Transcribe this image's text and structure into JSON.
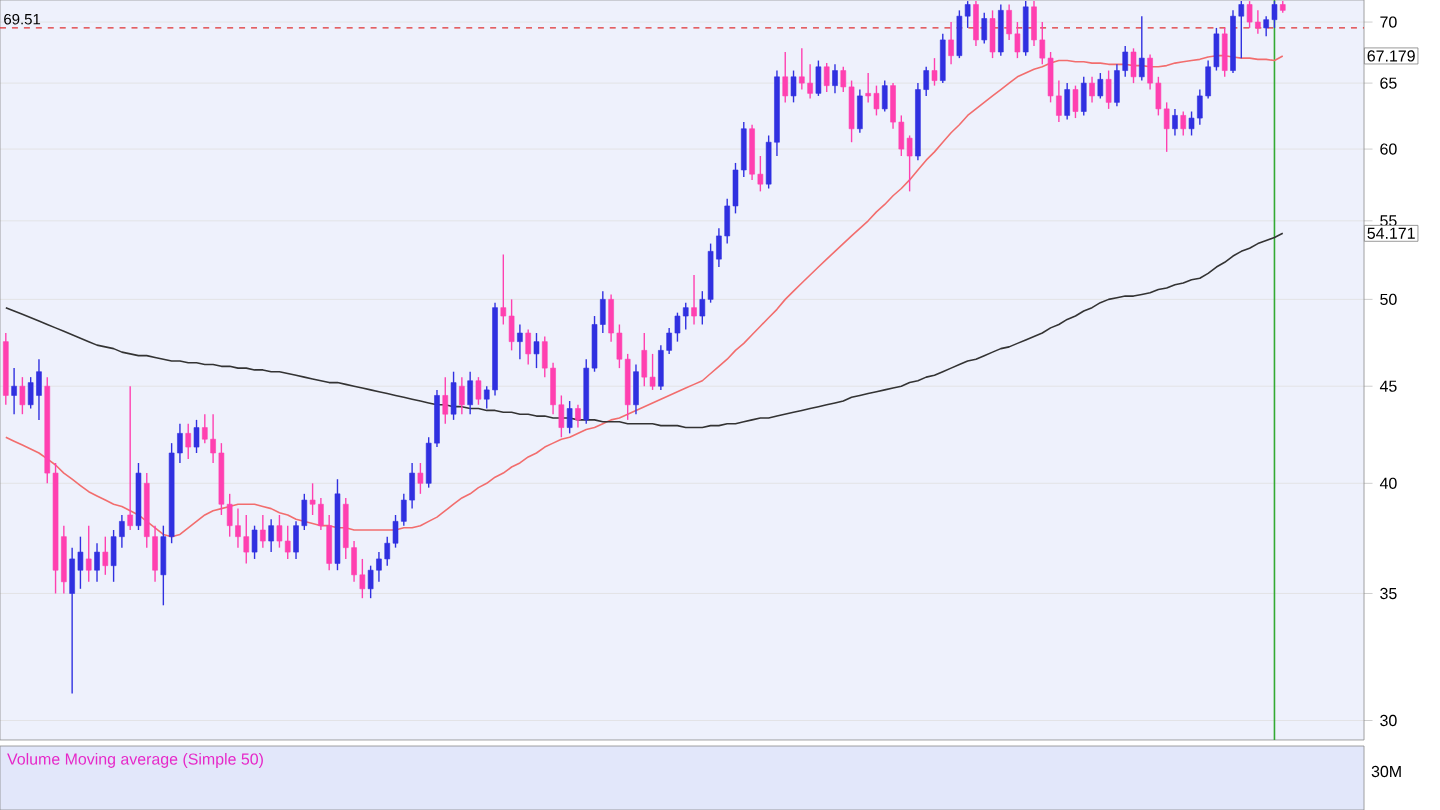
{
  "chart_data": [
    {
      "type": "candlestick",
      "categories": [
        null,
        null,
        null,
        null,
        null,
        null,
        null,
        null,
        null,
        null,
        null,
        null,
        null,
        null,
        null,
        null,
        null,
        null,
        null,
        null,
        null,
        null,
        null,
        null,
        null,
        null,
        null,
        null,
        null,
        null,
        null,
        null,
        null,
        null,
        null,
        null,
        null,
        null,
        null,
        null,
        null,
        null,
        null,
        null,
        null,
        null,
        null,
        null,
        null,
        null,
        null,
        null,
        null,
        null,
        null,
        null,
        null,
        null,
        null,
        null,
        null,
        null,
        null,
        null,
        null,
        null,
        null,
        null,
        null,
        null,
        null,
        null,
        null,
        null,
        null,
        null,
        null,
        null,
        null,
        null,
        null,
        null,
        null,
        null,
        null,
        null,
        null,
        null,
        null,
        null,
        null,
        null,
        null,
        null,
        null,
        null,
        null,
        null,
        null,
        null,
        null,
        null,
        null,
        null,
        null,
        null,
        null,
        null,
        null,
        null,
        null,
        null,
        null,
        null,
        null,
        null,
        null,
        null,
        null,
        null,
        null,
        null,
        null,
        null,
        null,
        null,
        null,
        null,
        null,
        null,
        null,
        null,
        null,
        null,
        null,
        null,
        null,
        null,
        null,
        null,
        null,
        null,
        null,
        null,
        null,
        null,
        null,
        null,
        null,
        null,
        null,
        null,
        null,
        null,
        null
      ],
      "ohlc": [
        [
          47.5,
          48,
          44,
          44.5
        ],
        [
          44.5,
          46,
          43.5,
          45
        ],
        [
          45,
          45.5,
          43.5,
          44
        ],
        [
          44,
          45.5,
          43.8,
          45.2
        ],
        [
          44.5,
          46.5,
          43.2,
          45.8
        ],
        [
          45,
          45.5,
          40,
          40.5
        ],
        [
          40.5,
          41,
          35,
          36
        ],
        [
          37.5,
          38,
          35,
          35.5
        ],
        [
          35,
          37,
          31,
          36.5
        ],
        [
          36,
          37.5,
          35.2,
          36.8
        ],
        [
          36.5,
          38,
          35.5,
          36
        ],
        [
          36,
          37.2,
          35.5,
          36.8
        ],
        [
          36.8,
          37.5,
          35.8,
          36.2
        ],
        [
          36.2,
          37.8,
          35.5,
          37.5
        ],
        [
          37.5,
          38.5,
          37,
          38.2
        ],
        [
          38.5,
          45,
          37.8,
          38
        ],
        [
          38,
          41,
          37.8,
          40.5
        ],
        [
          40,
          40.5,
          37,
          37.5
        ],
        [
          37.5,
          38,
          35.5,
          36
        ],
        [
          35.8,
          38,
          34.5,
          37.5
        ],
        [
          37.5,
          42,
          37.2,
          41.5
        ],
        [
          41.5,
          43,
          41,
          42.5
        ],
        [
          42.5,
          43,
          41.2,
          41.8
        ],
        [
          41.8,
          43.2,
          41.5,
          42.8
        ],
        [
          42.8,
          43.5,
          42,
          42.2
        ],
        [
          42.2,
          43.5,
          41,
          41.5
        ],
        [
          41.5,
          42,
          38.5,
          39
        ],
        [
          39,
          39.5,
          37.5,
          38
        ],
        [
          38,
          38.8,
          37,
          37.5
        ],
        [
          37.5,
          38.5,
          36.3,
          36.8
        ],
        [
          36.8,
          38,
          36.5,
          37.8
        ],
        [
          37.8,
          38.5,
          37,
          37.3
        ],
        [
          37.3,
          38.3,
          36.8,
          38
        ],
        [
          38,
          38.5,
          37,
          37.3
        ],
        [
          37.3,
          38,
          36.5,
          36.8
        ],
        [
          36.8,
          38.2,
          36.5,
          38
        ],
        [
          38,
          39.5,
          37.8,
          39.2
        ],
        [
          39.2,
          40,
          38.5,
          39
        ],
        [
          39,
          39.3,
          37.8,
          38
        ],
        [
          38,
          38.5,
          36,
          36.3
        ],
        [
          36.3,
          40.2,
          36,
          39.5
        ],
        [
          39,
          39.3,
          36.5,
          37
        ],
        [
          37,
          37.3,
          35.5,
          35.8
        ],
        [
          35.8,
          36.5,
          34.8,
          35.2
        ],
        [
          35.2,
          36.2,
          34.8,
          36
        ],
        [
          36,
          36.8,
          35.5,
          36.5
        ],
        [
          36.5,
          37.5,
          36.2,
          37.2
        ],
        [
          37.2,
          38.5,
          37,
          38.2
        ],
        [
          38.2,
          39.5,
          38,
          39.2
        ],
        [
          39.2,
          41,
          38.8,
          40.5
        ],
        [
          40.5,
          41,
          39.5,
          40
        ],
        [
          40,
          42.3,
          39.8,
          42
        ],
        [
          42,
          44.8,
          41.8,
          44.5
        ],
        [
          44.5,
          45.5,
          43,
          43.5
        ],
        [
          43.5,
          45.8,
          43.2,
          45.2
        ],
        [
          45,
          45.5,
          43.5,
          44
        ],
        [
          44,
          45.8,
          43.5,
          45.3
        ],
        [
          45.3,
          45.5,
          44,
          44.3
        ],
        [
          44.3,
          45,
          43.8,
          44.8
        ],
        [
          44.8,
          49.8,
          44.5,
          49.5
        ],
        [
          49.5,
          52.8,
          48.5,
          49
        ],
        [
          49,
          50,
          47,
          47.5
        ],
        [
          47.5,
          48.5,
          46.5,
          48
        ],
        [
          48,
          48.2,
          46.2,
          46.8
        ],
        [
          46.8,
          48,
          46,
          47.5
        ],
        [
          47.5,
          47.8,
          45.5,
          46
        ],
        [
          46,
          46.3,
          43.5,
          44
        ],
        [
          44,
          44.5,
          42.3,
          42.8
        ],
        [
          42.8,
          44.2,
          42.5,
          43.8
        ],
        [
          43.8,
          44,
          42.8,
          43.2
        ],
        [
          43.2,
          46.5,
          43,
          46
        ],
        [
          46,
          49,
          45.8,
          48.5
        ],
        [
          48.5,
          50.5,
          48,
          50
        ],
        [
          50,
          50.3,
          47.5,
          48
        ],
        [
          48,
          48.5,
          46,
          46.5
        ],
        [
          46.5,
          46.8,
          43.2,
          44
        ],
        [
          44,
          46.2,
          43.5,
          45.8
        ],
        [
          47,
          48,
          45,
          45.5
        ],
        [
          45.5,
          46.8,
          44.8,
          45
        ],
        [
          45,
          47.3,
          44.8,
          47
        ],
        [
          47,
          48.3,
          46.8,
          48
        ],
        [
          48,
          49.2,
          47.5,
          49
        ],
        [
          49,
          49.8,
          48.2,
          49.5
        ],
        [
          49.5,
          51.5,
          48.5,
          49
        ],
        [
          49,
          50.5,
          48.5,
          50
        ],
        [
          50,
          53.5,
          49.8,
          53
        ],
        [
          52.5,
          54.5,
          52,
          54
        ],
        [
          54,
          56.5,
          53.5,
          56
        ],
        [
          56,
          59,
          55.5,
          58.5
        ],
        [
          58.5,
          62,
          58,
          61.5
        ],
        [
          61.5,
          61.8,
          57.8,
          58.2
        ],
        [
          58.2,
          59.5,
          57,
          57.5
        ],
        [
          57.5,
          61,
          57.2,
          60.5
        ],
        [
          60.5,
          66,
          59.5,
          65.5
        ],
        [
          65.5,
          67.5,
          63.5,
          64
        ],
        [
          64,
          66,
          63.5,
          65.5
        ],
        [
          65.5,
          67.8,
          64.5,
          65
        ],
        [
          65,
          66.5,
          63.8,
          64.2
        ],
        [
          64.2,
          66.8,
          64,
          66.3
        ],
        [
          66.3,
          66.6,
          64.3,
          64.8
        ],
        [
          64.8,
          66.5,
          64.2,
          66
        ],
        [
          66,
          66.3,
          64.3,
          64.7
        ],
        [
          64.7,
          65.2,
          60.5,
          61.5
        ],
        [
          61.5,
          64.5,
          61.2,
          64
        ],
        [
          64,
          65.8,
          63.5,
          64.2
        ],
        [
          64.2,
          64.8,
          62.5,
          63
        ],
        [
          63,
          65.2,
          62.8,
          64.8
        ],
        [
          64.8,
          65,
          61.5,
          62
        ],
        [
          62,
          62.5,
          59.5,
          60
        ],
        [
          60.8,
          61,
          57,
          59.5
        ],
        [
          59.5,
          65,
          59.2,
          64.5
        ],
        [
          64.5,
          66.3,
          64,
          66
        ],
        [
          66,
          67,
          64.8,
          65.2
        ],
        [
          65.2,
          69,
          65,
          68.5
        ],
        [
          68.5,
          70,
          66.5,
          67.2
        ],
        [
          67.2,
          71,
          67,
          70.5
        ],
        [
          70.5,
          71.8,
          69.5,
          71.5
        ],
        [
          71.5,
          71.8,
          68,
          68.5
        ],
        [
          68.5,
          70.8,
          68.2,
          70.3
        ],
        [
          70.3,
          71,
          67,
          67.5
        ],
        [
          67.5,
          71.5,
          67.2,
          71
        ],
        [
          71,
          71.5,
          68.5,
          69
        ],
        [
          69,
          70,
          67,
          67.5
        ],
        [
          67.5,
          71.8,
          67.2,
          71.3
        ],
        [
          71.3,
          71.8,
          68,
          68.5
        ],
        [
          68.5,
          70,
          66.5,
          67
        ],
        [
          67,
          67.5,
          63.5,
          64
        ],
        [
          64,
          65.2,
          62,
          62.5
        ],
        [
          62.5,
          65,
          62.2,
          64.5
        ],
        [
          64.5,
          64.8,
          62.3,
          62.8
        ],
        [
          62.8,
          65.5,
          62.5,
          65
        ],
        [
          65,
          65.5,
          63.5,
          64
        ],
        [
          64,
          65.8,
          63.8,
          65.3
        ],
        [
          65.3,
          66,
          63,
          63.5
        ],
        [
          63.5,
          66.5,
          63.2,
          66
        ],
        [
          66,
          68,
          65.5,
          67.5
        ],
        [
          67.5,
          67.8,
          65,
          65.5
        ],
        [
          65.5,
          70.5,
          65.2,
          67
        ],
        [
          67,
          67.3,
          64.5,
          65
        ],
        [
          65,
          65.5,
          62.5,
          63
        ],
        [
          63,
          63.5,
          59.8,
          61.5
        ],
        [
          61.5,
          63,
          61,
          62.5
        ],
        [
          62.5,
          62.8,
          61,
          61.5
        ],
        [
          61.5,
          62.8,
          61,
          62.3
        ],
        [
          62.3,
          64.5,
          61.8,
          64
        ],
        [
          64,
          66.8,
          63.8,
          66.3
        ],
        [
          66.3,
          69.5,
          66,
          69
        ],
        [
          69,
          69.5,
          65.5,
          66
        ],
        [
          66,
          71,
          65.8,
          70.5
        ],
        [
          70.5,
          71.8,
          67,
          71.5
        ],
        [
          71.5,
          71.8,
          69.5,
          70
        ],
        [
          70,
          71,
          69,
          69.5
        ],
        [
          69.5,
          70.5,
          68.8,
          70.2
        ],
        [
          70.2,
          71.8,
          69.5,
          71.5
        ],
        [
          71.5,
          71.8,
          70.8,
          71
        ]
      ],
      "colors": [
        "#ff40b0",
        "#3030e0",
        "#ff40b0",
        "#3030e0",
        "#3030e0",
        "#ff40b0",
        "#ff40b0",
        "#ff40b0",
        "#3030e0",
        "#3030e0",
        "#ff40b0",
        "#3030e0",
        "#ff40b0",
        "#3030e0",
        "#3030e0",
        "#ff40b0",
        "#3030e0",
        "#ff40b0",
        "#ff40b0",
        "#3030e0",
        "#3030e0",
        "#3030e0",
        "#ff40b0",
        "#3030e0",
        "#ff40b0",
        "#ff40b0",
        "#ff40b0",
        "#ff40b0",
        "#ff40b0",
        "#ff40b0",
        "#3030e0",
        "#ff40b0",
        "#3030e0",
        "#ff40b0",
        "#ff40b0",
        "#3030e0",
        "#3030e0",
        "#ff40b0",
        "#ff40b0",
        "#ff40b0",
        "#3030e0",
        "#ff40b0",
        "#ff40b0",
        "#ff40b0",
        "#3030e0",
        "#3030e0",
        "#3030e0",
        "#3030e0",
        "#3030e0",
        "#3030e0",
        "#ff40b0",
        "#3030e0",
        "#3030e0",
        "#ff40b0",
        "#3030e0",
        "#ff40b0",
        "#3030e0",
        "#ff40b0",
        "#3030e0",
        "#3030e0",
        "#ff40b0",
        "#ff40b0",
        "#3030e0",
        "#ff40b0",
        "#3030e0",
        "#ff40b0",
        "#ff40b0",
        "#ff40b0",
        "#3030e0",
        "#ff40b0",
        "#3030e0",
        "#3030e0",
        "#3030e0",
        "#ff40b0",
        "#ff40b0",
        "#ff40b0",
        "#3030e0",
        "#ff40b0",
        "#ff40b0",
        "#3030e0",
        "#3030e0",
        "#3030e0",
        "#3030e0",
        "#ff40b0",
        "#3030e0",
        "#3030e0",
        "#3030e0",
        "#3030e0",
        "#3030e0",
        "#3030e0",
        "#ff40b0",
        "#ff40b0",
        "#3030e0",
        "#3030e0",
        "#ff40b0",
        "#3030e0",
        "#ff40b0",
        "#ff40b0",
        "#3030e0",
        "#ff40b0",
        "#3030e0",
        "#ff40b0",
        "#ff40b0",
        "#3030e0",
        "#ff40b0",
        "#ff40b0",
        "#3030e0",
        "#ff40b0",
        "#ff40b0",
        "#ff40b0",
        "#3030e0",
        "#3030e0",
        "#ff40b0",
        "#3030e0",
        "#ff40b0",
        "#3030e0",
        "#3030e0",
        "#ff40b0",
        "#3030e0",
        "#ff40b0",
        "#3030e0",
        "#ff40b0",
        "#ff40b0",
        "#3030e0",
        "#ff40b0",
        "#ff40b0",
        "#ff40b0",
        "#ff40b0",
        "#3030e0",
        "#ff40b0",
        "#3030e0",
        "#ff40b0",
        "#3030e0",
        "#ff40b0",
        "#3030e0",
        "#3030e0",
        "#ff40b0",
        "#3030e0",
        "#ff40b0",
        "#ff40b0",
        "#ff40b0",
        "#3030e0",
        "#ff40b0",
        "#3030e0",
        "#3030e0",
        "#3030e0",
        "#3030e0",
        "#ff40b0",
        "#3030e0",
        "#3030e0",
        "#ff40b0",
        "#ff40b0",
        "#3030e0",
        "#3030e0",
        "#ff40b0"
      ],
      "series": [
        {
          "type": "line",
          "color": "#f26d6d",
          "values": [
            42.3,
            42.1,
            41.9,
            41.7,
            41.5,
            41.2,
            40.9,
            40.5,
            40.2,
            39.9,
            39.6,
            39.4,
            39.2,
            39.0,
            38.9,
            38.7,
            38.5,
            38.2,
            37.9,
            37.6,
            37.5,
            37.6,
            37.9,
            38.2,
            38.5,
            38.7,
            38.8,
            38.9,
            39.0,
            39.0,
            39.0,
            38.9,
            38.8,
            38.6,
            38.5,
            38.3,
            38.2,
            38.1,
            38.0,
            38.0,
            37.9,
            37.9,
            37.8,
            37.8,
            37.8,
            37.8,
            37.8,
            37.8,
            37.9,
            37.9,
            38.0,
            38.2,
            38.4,
            38.7,
            39.0,
            39.3,
            39.5,
            39.8,
            40.0,
            40.3,
            40.5,
            40.8,
            41.0,
            41.3,
            41.5,
            41.8,
            42.0,
            42.2,
            42.3,
            42.5,
            42.7,
            42.8,
            43.0,
            43.2,
            43.3,
            43.5,
            43.7,
            43.9,
            44.1,
            44.3,
            44.5,
            44.7,
            44.9,
            45.1,
            45.3,
            45.7,
            46.1,
            46.5,
            47.0,
            47.4,
            47.9,
            48.4,
            48.9,
            49.4,
            50.0,
            50.5,
            51.0,
            51.5,
            52.0,
            52.5,
            53.0,
            53.5,
            54.0,
            54.5,
            55.0,
            55.6,
            56.1,
            56.7,
            57.2,
            57.8,
            58.5,
            59.2,
            59.8,
            60.5,
            61.2,
            61.8,
            62.5,
            63.0,
            63.5,
            64.0,
            64.5,
            65.0,
            65.5,
            65.8,
            66.1,
            66.3,
            66.6,
            66.8,
            66.8,
            66.7,
            66.7,
            66.6,
            66.6,
            66.5,
            66.5,
            66.5,
            66.4,
            66.4,
            66.3,
            66.3,
            66.4,
            66.6,
            66.7,
            66.8,
            66.9,
            67.1,
            67.2,
            67.2,
            67.1,
            67.0,
            67.0,
            66.9,
            66.9,
            66.8,
            67.179
          ]
        },
        {
          "type": "line",
          "color": "#333333",
          "values": [
            49.5,
            49.3,
            49.1,
            48.9,
            48.7,
            48.5,
            48.3,
            48.1,
            47.9,
            47.7,
            47.5,
            47.3,
            47.2,
            47.1,
            46.9,
            46.8,
            46.7,
            46.7,
            46.6,
            46.5,
            46.4,
            46.4,
            46.3,
            46.3,
            46.2,
            46.2,
            46.1,
            46.1,
            46.0,
            46.0,
            45.9,
            45.9,
            45.8,
            45.8,
            45.7,
            45.6,
            45.5,
            45.4,
            45.3,
            45.2,
            45.2,
            45.1,
            45.0,
            44.9,
            44.8,
            44.7,
            44.6,
            44.5,
            44.4,
            44.3,
            44.2,
            44.1,
            44.0,
            44.0,
            43.9,
            43.9,
            43.8,
            43.8,
            43.7,
            43.7,
            43.6,
            43.6,
            43.5,
            43.5,
            43.4,
            43.4,
            43.3,
            43.3,
            43.3,
            43.2,
            43.2,
            43.2,
            43.1,
            43.1,
            43.1,
            43.0,
            43.0,
            43.0,
            43.0,
            42.9,
            42.9,
            42.9,
            42.8,
            42.8,
            42.8,
            42.9,
            42.9,
            43.0,
            43.0,
            43.1,
            43.2,
            43.3,
            43.3,
            43.4,
            43.5,
            43.6,
            43.7,
            43.8,
            43.9,
            44.0,
            44.1,
            44.2,
            44.4,
            44.5,
            44.6,
            44.7,
            44.8,
            44.9,
            45.0,
            45.2,
            45.3,
            45.5,
            45.6,
            45.8,
            46.0,
            46.2,
            46.4,
            46.5,
            46.7,
            46.9,
            47.1,
            47.2,
            47.4,
            47.6,
            47.8,
            48.0,
            48.3,
            48.5,
            48.8,
            49.0,
            49.3,
            49.5,
            49.8,
            50.0,
            50.1,
            50.2,
            50.2,
            50.3,
            50.4,
            50.6,
            50.7,
            50.9,
            51.0,
            51.2,
            51.3,
            51.6,
            52.0,
            52.3,
            52.7,
            53.0,
            53.2,
            53.5,
            53.7,
            53.9,
            54.171
          ]
        }
      ],
      "ylim": [
        29.3,
        71.9
      ],
      "yticks": [
        30,
        35,
        40,
        45,
        50,
        55,
        60,
        65,
        70
      ],
      "log": true,
      "grid": "y",
      "ref_lines": [
        {
          "axis": "y",
          "value": 69.51,
          "label": "69.51",
          "color": "#e03030",
          "line_style": "dashed"
        }
      ],
      "annotations": [
        "67.179",
        "54.171"
      ]
    },
    {
      "type": "other",
      "title": "Volume Moving average (Simple 50)",
      "annotations": [
        "30M"
      ]
    }
  ]
}
